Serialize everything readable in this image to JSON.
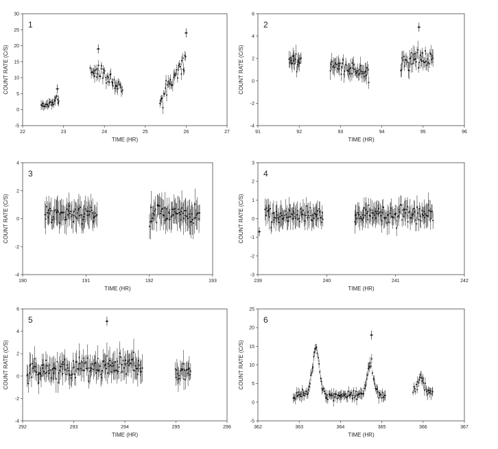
{
  "chart_data": [
    {
      "type": "scatter",
      "panel_label": "1",
      "xlabel": "TIME (HR)",
      "ylabel": "COUNT RATE (C/S)",
      "xlim": [
        22,
        27
      ],
      "ylim": [
        -5,
        30
      ],
      "xticks": [
        22,
        23,
        24,
        25,
        26,
        27
      ],
      "yticks": [
        -5,
        0,
        5,
        10,
        15,
        20,
        25,
        30
      ],
      "segments": [
        {
          "x_range": [
            22.45,
            22.9
          ],
          "base": [
            1,
            3
          ],
          "noise": 0.8,
          "err": 1.2
        },
        {
          "x_range": [
            23.65,
            24.45
          ],
          "base": [
            13,
            7
          ],
          "noise": 2.5,
          "err": 1.5
        },
        {
          "x_range": [
            25.35,
            26.0
          ],
          "base": [
            3,
            16
          ],
          "noise": 2.0,
          "err": 1.5
        }
      ],
      "points": [
        {
          "x": 22.85,
          "y": 6.5
        },
        {
          "x": 23.85,
          "y": 19
        },
        {
          "x": 26.0,
          "y": 24
        }
      ]
    },
    {
      "type": "scatter",
      "panel_label": "2",
      "xlabel": "TIME (HR)",
      "ylabel": "COUNT RATE (C/S)",
      "xlim": [
        91,
        96
      ],
      "ylim": [
        -4,
        6
      ],
      "xticks": [
        91,
        92,
        93,
        94,
        95,
        96
      ],
      "yticks": [
        -4,
        -2,
        0,
        2,
        4,
        6
      ],
      "segments": [
        {
          "x_range": [
            91.75,
            92.05
          ],
          "base": [
            1.8,
            1.8
          ],
          "noise": 0.5,
          "err": 0.6
        },
        {
          "x_range": [
            92.75,
            93.7
          ],
          "base": [
            1.3,
            0.6
          ],
          "noise": 0.5,
          "err": 0.6
        },
        {
          "x_range": [
            94.45,
            95.25
          ],
          "base": [
            1.7,
            2.2
          ],
          "noise": 0.6,
          "err": 0.6
        }
      ],
      "points": [
        {
          "x": 94.9,
          "y": 4.8
        }
      ]
    },
    {
      "type": "scatter",
      "panel_label": "3",
      "xlabel": "TIME (HR)",
      "ylabel": "COUNT RATE (C/S)",
      "xlim": [
        190,
        193
      ],
      "ylim": [
        -4,
        4
      ],
      "xticks": [
        190,
        191,
        192,
        193
      ],
      "yticks": [
        -4,
        -2,
        0,
        2,
        4
      ],
      "segments": [
        {
          "x_range": [
            190.35,
            191.18
          ],
          "base": [
            0.3,
            0.3
          ],
          "noise": 0.4,
          "err": 0.8
        },
        {
          "x_range": [
            192.0,
            192.8
          ],
          "base": [
            0.3,
            0.3
          ],
          "noise": 0.5,
          "err": 0.9
        }
      ],
      "points": []
    },
    {
      "type": "scatter",
      "panel_label": "4",
      "xlabel": "TIME (HR)",
      "ylabel": "COUNT RATE (C/S)",
      "xlim": [
        239,
        242
      ],
      "ylim": [
        -3,
        3
      ],
      "xticks": [
        239,
        240,
        241,
        242
      ],
      "yticks": [
        -3,
        -2,
        -1,
        0,
        1,
        2,
        3
      ],
      "segments": [
        {
          "x_range": [
            239.1,
            239.95
          ],
          "base": [
            0.2,
            0.2
          ],
          "noise": 0.35,
          "err": 0.5
        },
        {
          "x_range": [
            240.4,
            241.55
          ],
          "base": [
            0.2,
            0.2
          ],
          "noise": 0.35,
          "err": 0.5
        }
      ],
      "points": [
        {
          "x": 239.02,
          "y": -0.7
        }
      ]
    },
    {
      "type": "scatter",
      "panel_label": "5",
      "xlabel": "TIME (HR)",
      "ylabel": "COUNT RATE (C/S)",
      "xlim": [
        292,
        296
      ],
      "ylim": [
        -4,
        6
      ],
      "xticks": [
        292,
        293,
        294,
        295,
        296
      ],
      "x_tick_labels": [
        "292",
        "293",
        "294",
        "295",
        "296"
      ],
      "yticks": [
        -4,
        -2,
        0,
        2,
        4,
        6
      ],
      "segments": [
        {
          "x_range": [
            292.08,
            294.35
          ],
          "base": [
            0.5,
            1.0
          ],
          "noise": 0.7,
          "err": 0.9
        },
        {
          "x_range": [
            294.98,
            295.3
          ],
          "base": [
            0.4,
            0.4
          ],
          "noise": 0.6,
          "err": 0.9
        }
      ],
      "points": [
        {
          "x": 293.65,
          "y": 4.9
        }
      ]
    },
    {
      "type": "scatter",
      "panel_label": "6",
      "xlabel": "TIME (HR)",
      "ylabel": "COUNT RATE (C/S)",
      "xlim": [
        362,
        367
      ],
      "ylim": [
        -5,
        25
      ],
      "xticks": [
        362,
        363,
        364,
        365,
        366,
        367
      ],
      "yticks": [
        -5,
        0,
        5,
        10,
        15,
        20,
        25
      ],
      "segments": [
        {
          "x_range": [
            362.85,
            365.1
          ],
          "base": [
            2,
            2
          ],
          "noise": 0.9,
          "err": 1.2
        },
        {
          "x_range": [
            365.75,
            366.25
          ],
          "base": [
            3,
            3
          ],
          "noise": 1.0,
          "err": 1.2
        }
      ],
      "flares": [
        {
          "center": 363.4,
          "width": 0.08,
          "peak": 13
        },
        {
          "center": 364.72,
          "width": 0.07,
          "peak": 9
        },
        {
          "center": 365.95,
          "width": 0.06,
          "peak": 4
        }
      ],
      "points": [
        {
          "x": 364.75,
          "y": 18
        }
      ]
    }
  ]
}
